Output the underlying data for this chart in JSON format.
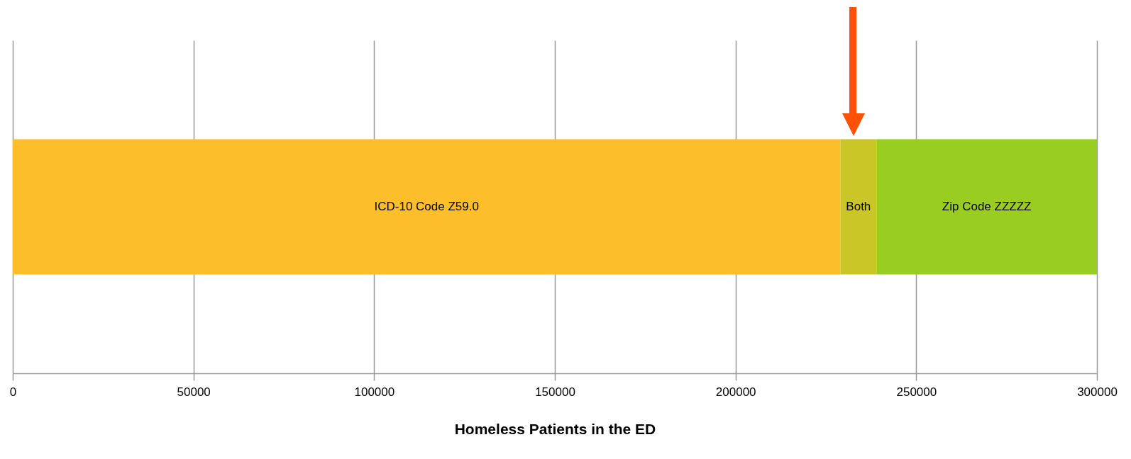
{
  "chart_data": {
    "type": "bar",
    "orientation": "horizontal",
    "stacked": true,
    "categories": [
      null
    ],
    "series": [
      {
        "name": "ICD-10 Code Z59.0",
        "color": "#fdbe2c",
        "values": [
          229000
        ]
      },
      {
        "name": "Both",
        "color": "#cbc627",
        "values": [
          10000
        ]
      },
      {
        "name": "Zip Code ZZZZZ",
        "color": "#9acd22",
        "values": [
          61000
        ]
      }
    ],
    "xlabel": "Homeless Patients in the ED",
    "xlim": [
      0,
      300000
    ],
    "xticks": [
      0,
      50000,
      100000,
      150000,
      200000,
      250000,
      300000
    ],
    "grid": "x",
    "legend": false
  }
}
